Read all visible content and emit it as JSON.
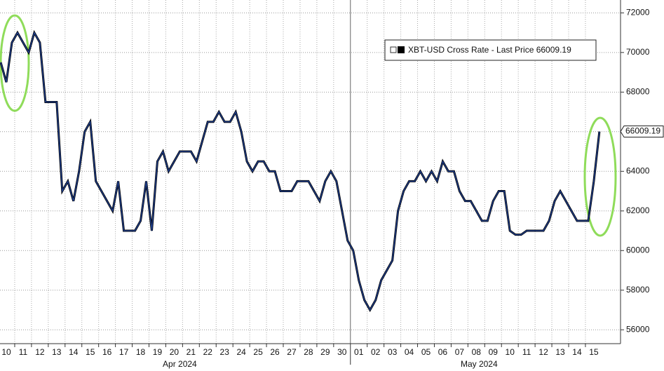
{
  "chart_data": {
    "type": "line",
    "categories": [
      null,
      "10",
      null,
      null,
      "11",
      null,
      null,
      "12",
      null,
      null,
      "13",
      null,
      null,
      "14",
      null,
      null,
      "15",
      null,
      null,
      "16",
      null,
      null,
      "17",
      null,
      null,
      "18",
      null,
      null,
      "19",
      null,
      null,
      "20",
      null,
      null,
      "21",
      null,
      null,
      "22",
      null,
      null,
      "23",
      null,
      null,
      "24",
      null,
      null,
      "25",
      null,
      null,
      "26",
      null,
      null,
      "27",
      null,
      null,
      "28",
      null,
      null,
      "29",
      null,
      null,
      "30",
      null,
      null,
      "01",
      null,
      null,
      "02",
      null,
      null,
      "03",
      null,
      null,
      "04",
      null,
      null,
      "05",
      null,
      null,
      "06",
      null,
      null,
      "07",
      null,
      null,
      "08",
      null,
      null,
      "09",
      null,
      null,
      "10",
      null,
      null,
      "11",
      null,
      null,
      "12",
      null,
      null,
      "13",
      null,
      null,
      "14",
      null,
      null,
      "15",
      null
    ],
    "x_group_labels": [
      "Apr 2024",
      "May 2024"
    ],
    "series": [
      {
        "name": "XBT-USD Cross Rate - Last Price 66009.19",
        "color": "#1f3f8f",
        "values": [
          69500,
          68500,
          70500,
          71000,
          70500,
          70000,
          71000,
          70500,
          67500,
          67500,
          67500,
          63000,
          63500,
          62500,
          64000,
          66000,
          66500,
          63500,
          63000,
          62500,
          62000,
          63500,
          61000,
          61000,
          61000,
          61500,
          63500,
          61000,
          64500,
          65000,
          64000,
          64500,
          65000,
          65000,
          65000,
          64500,
          65500,
          66500,
          66500,
          67000,
          66500,
          66500,
          67000,
          66000,
          64500,
          64000,
          64500,
          64500,
          64000,
          64000,
          63000,
          63000,
          63000,
          63500,
          63500,
          63500,
          63000,
          62500,
          63500,
          64000,
          63500,
          62000,
          60500,
          60000,
          58500,
          57500,
          57000,
          57500,
          58500,
          59000,
          59500,
          62000,
          63000,
          63500,
          63500,
          64000,
          63500,
          64000,
          63500,
          64500,
          64000,
          64000,
          63000,
          62500,
          62500,
          62000,
          61500,
          61500,
          62500,
          63000,
          63000,
          61000,
          60800,
          60800,
          61000,
          61000,
          61000,
          61000,
          61500,
          62500,
          63000,
          62500,
          62000,
          61500,
          61500,
          61500,
          63500,
          66009.19
        ]
      }
    ],
    "ylim": [
      55300,
      72650
    ],
    "yticks": [
      56000,
      58000,
      60000,
      62000,
      64000,
      66000,
      68000,
      70000,
      72000
    ],
    "grid": true
  }
}
